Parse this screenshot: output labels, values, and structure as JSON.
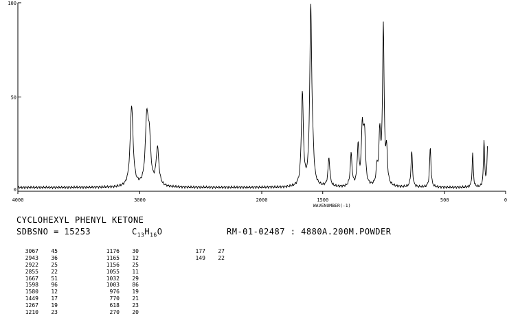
{
  "chart_data": {
    "type": "line",
    "xlabel": "WAVENUMBER(-1)",
    "ylabel": "",
    "xlim": [
      4000,
      0
    ],
    "ylim": [
      0,
      100
    ],
    "xticks": [
      "4000",
      "3000",
      "2000",
      "1500",
      "500",
      "0"
    ],
    "yticks": [
      "100",
      "50",
      "0"
    ],
    "baseline": 2,
    "peaks": [
      [
        3067,
        45
      ],
      [
        2943,
        36
      ],
      [
        2922,
        25
      ],
      [
        2855,
        22
      ],
      [
        1667,
        51
      ],
      [
        1598,
        96
      ],
      [
        1580,
        12
      ],
      [
        1449,
        17
      ],
      [
        1267,
        19
      ],
      [
        1210,
        23
      ],
      [
        1176,
        30
      ],
      [
        1165,
        12
      ],
      [
        1156,
        25
      ],
      [
        1055,
        11
      ],
      [
        1032,
        29
      ],
      [
        1003,
        86
      ],
      [
        976,
        19
      ],
      [
        770,
        21
      ],
      [
        618,
        23
      ],
      [
        270,
        20
      ],
      [
        177,
        27
      ],
      [
        149,
        22
      ]
    ],
    "grid": false
  },
  "header": {
    "compound": "CYCLOHEXYL PHENYL KETONE",
    "sdbsno": "SDBSNO = 15253",
    "formula_c": "C",
    "formula_c_count": "13",
    "formula_h": "H",
    "formula_h_count": "16",
    "formula_o": "O",
    "run_info": "RM-01-02487 : 4880A.200M.POWDER"
  },
  "peak_table": [
    [
      [
        "3067",
        "45"
      ],
      [
        "2943",
        "36"
      ],
      [
        "2922",
        "25"
      ],
      [
        "2855",
        "22"
      ],
      [
        "1667",
        "51"
      ],
      [
        "1598",
        "96"
      ],
      [
        "1580",
        "12"
      ],
      [
        "1449",
        "17"
      ],
      [
        "1267",
        "19"
      ],
      [
        "1210",
        "23"
      ]
    ],
    [
      [
        "1176",
        "30"
      ],
      [
        "1165",
        "12"
      ],
      [
        "1156",
        "25"
      ],
      [
        "1055",
        "11"
      ],
      [
        "1032",
        "29"
      ],
      [
        "1003",
        "86"
      ],
      [
        "976",
        "19"
      ],
      [
        "770",
        "21"
      ],
      [
        "618",
        "23"
      ],
      [
        "270",
        "20"
      ]
    ],
    [
      [
        "177",
        "27"
      ],
      [
        "149",
        "22"
      ]
    ]
  ]
}
